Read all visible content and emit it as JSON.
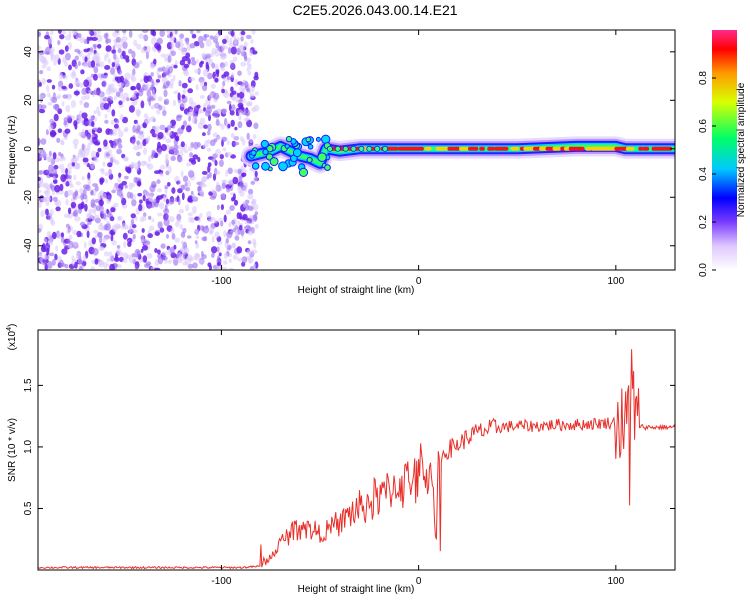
{
  "title": "C2E5.2026.043.00.14.E21",
  "chart_data": [
    {
      "type": "heatmap",
      "xlabel": "Height of straight line (km)",
      "ylabel": "Frequency (Hz)",
      "xlim": [
        -193,
        130
      ],
      "ylim": [
        -50,
        49
      ],
      "xticks": [
        -100,
        0,
        100
      ],
      "yticks": [
        -40,
        -20,
        0,
        20,
        40
      ],
      "noise_region": {
        "x_from": -193,
        "x_to": -82,
        "freq_range": [
          -50,
          49
        ],
        "level": 0.1
      },
      "ridge": [
        {
          "x": -85,
          "freq": -3
        },
        {
          "x": -75,
          "freq": -1
        },
        {
          "x": -70,
          "freq": 1
        },
        {
          "x": -65,
          "freq": -1
        },
        {
          "x": -60,
          "freq": -3
        },
        {
          "x": -55,
          "freq": -4
        },
        {
          "x": -50,
          "freq": -6
        },
        {
          "x": -47,
          "freq": 0
        },
        {
          "x": -40,
          "freq": -1
        },
        {
          "x": -30,
          "freq": 0
        },
        {
          "x": -20,
          "freq": 0
        },
        {
          "x": -10,
          "freq": 0
        },
        {
          "x": 0,
          "freq": 0
        },
        {
          "x": 20,
          "freq": 0
        },
        {
          "x": 50,
          "freq": 0
        },
        {
          "x": 80,
          "freq": 1
        },
        {
          "x": 100,
          "freq": 1
        },
        {
          "x": 105,
          "freq": 0
        },
        {
          "x": 130,
          "freq": 0
        }
      ],
      "colorbar": {
        "label": "Normalized spectral amplitude",
        "range": [
          0,
          1
        ],
        "ticks": [
          0.0,
          0.2,
          0.4,
          0.6,
          0.8
        ]
      }
    },
    {
      "type": "line",
      "xlabel": "Height of straight line (km)",
      "ylabel": "SNR (10 * v/v)",
      "scale_label": "(x10",
      "scale_exp": "4",
      "xlim": [
        -193,
        130
      ],
      "ylim": [
        0,
        1.95
      ],
      "xticks": [
        -100,
        0,
        100
      ],
      "yticks": [
        0.5,
        1.0,
        1.5
      ],
      "color": "#e8302a",
      "series": [
        {
          "x": [
            -193,
            -120,
            -90,
            -80,
            -75,
            -70,
            -65,
            -60,
            -55,
            -50,
            -45,
            -40,
            -35,
            -30,
            -25,
            -20,
            -15,
            -10,
            -5,
            0,
            5,
            8,
            10,
            15,
            20,
            25,
            30,
            40,
            50,
            60,
            70,
            80,
            90,
            100,
            105,
            107,
            108,
            110,
            115,
            120,
            130
          ],
          "y": [
            0.02,
            0.02,
            0.02,
            0.03,
            0.1,
            0.22,
            0.3,
            0.38,
            0.33,
            0.3,
            0.33,
            0.38,
            0.45,
            0.5,
            0.55,
            0.6,
            0.65,
            0.7,
            0.73,
            0.78,
            0.82,
            0.6,
            0.9,
            0.98,
            1.02,
            1.08,
            1.12,
            1.16,
            1.17,
            1.17,
            1.18,
            1.18,
            1.19,
            1.2,
            1.15,
            1.4,
            1.6,
            1.18,
            1.16,
            1.16,
            1.16
          ]
        }
      ]
    }
  ]
}
